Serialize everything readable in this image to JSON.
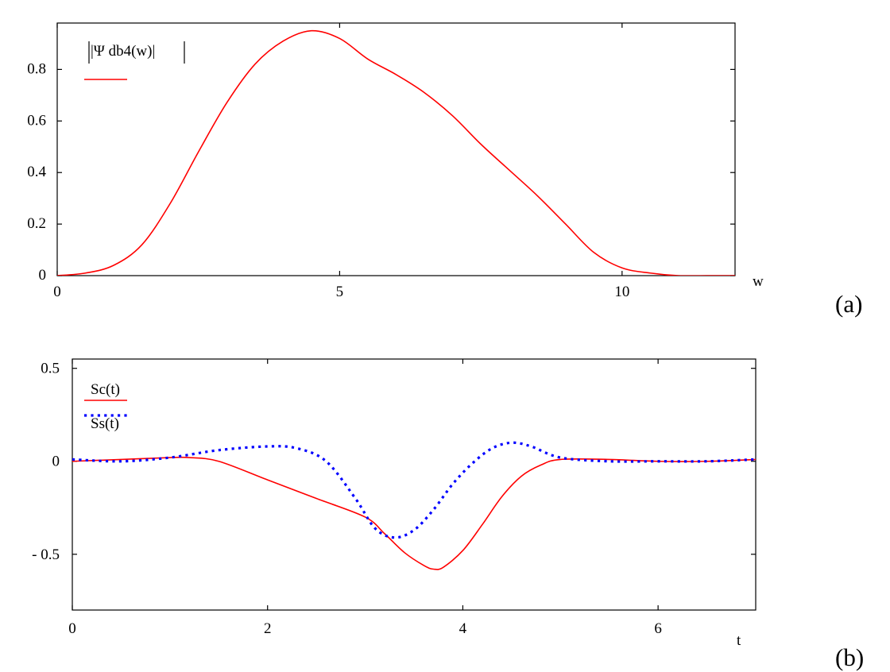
{
  "figure": {
    "panel_labels": [
      "(a)",
      "(b)"
    ]
  },
  "chart_data": [
    {
      "type": "line",
      "panel": "(a)",
      "title": "",
      "xlabel": "w",
      "ylabel": "",
      "xlim": [
        0,
        12
      ],
      "ylim": [
        0,
        0.98
      ],
      "xticks": [
        0,
        5,
        10
      ],
      "xtick_labels": [
        "0",
        "5",
        "10"
      ],
      "yticks": [
        0,
        0.2,
        0.4,
        0.6,
        0.8
      ],
      "ytick_labels": [
        "0",
        "0.2",
        "0.4",
        "0.6",
        "0.8"
      ],
      "grid": false,
      "legend_position": "top-left",
      "series": [
        {
          "name": "|Ψ db4(w)|",
          "color": "#ff0000",
          "style": "solid",
          "x": [
            0,
            0.5,
            1.0,
            1.5,
            2.0,
            2.5,
            3.0,
            3.5,
            4.0,
            4.5,
            5.0,
            5.5,
            6.0,
            6.5,
            7.0,
            7.5,
            8.0,
            8.5,
            9.0,
            9.5,
            10.0,
            10.5,
            11.0,
            11.5,
            12.0
          ],
          "y": [
            0.0,
            0.01,
            0.04,
            0.12,
            0.28,
            0.48,
            0.67,
            0.82,
            0.91,
            0.95,
            0.92,
            0.84,
            0.78,
            0.71,
            0.62,
            0.51,
            0.41,
            0.31,
            0.2,
            0.09,
            0.03,
            0.01,
            0.0,
            0.0,
            0.0
          ]
        }
      ]
    },
    {
      "type": "line",
      "panel": "(b)",
      "title": "",
      "xlabel": "t",
      "ylabel": "",
      "xlim": [
        0,
        7
      ],
      "ylim": [
        -0.8,
        0.55
      ],
      "xticks": [
        0,
        2,
        4,
        6
      ],
      "xtick_labels": [
        "0",
        "2",
        "4",
        "6"
      ],
      "yticks": [
        -0.5,
        0,
        0.5
      ],
      "ytick_labels": [
        "- 0.5",
        "0",
        "0.5"
      ],
      "grid": false,
      "legend_position": "top-left",
      "series": [
        {
          "name": "Sc(t)",
          "color": "#ff0000",
          "style": "solid",
          "x": [
            0,
            0.5,
            1.0,
            1.2,
            1.5,
            2.0,
            2.5,
            3.0,
            3.2,
            3.4,
            3.6,
            3.7,
            3.8,
            4.0,
            4.2,
            4.4,
            4.6,
            4.8,
            5.0,
            5.5,
            6.0,
            6.5,
            7.0
          ],
          "y": [
            0.0,
            0.01,
            0.02,
            0.02,
            0.0,
            -0.1,
            -0.2,
            -0.3,
            -0.39,
            -0.49,
            -0.56,
            -0.58,
            -0.57,
            -0.48,
            -0.34,
            -0.19,
            -0.08,
            -0.02,
            0.01,
            0.01,
            0.0,
            0.0,
            0.01
          ]
        },
        {
          "name": "Ss(t)",
          "color": "#0000ff",
          "style": "dotted",
          "x": [
            0,
            0.5,
            1.0,
            1.5,
            2.0,
            2.3,
            2.6,
            2.9,
            3.1,
            3.3,
            3.5,
            3.7,
            3.9,
            4.1,
            4.3,
            4.5,
            4.7,
            5.0,
            5.5,
            6.0,
            6.5,
            7.0
          ],
          "y": [
            0.01,
            0.0,
            0.02,
            0.06,
            0.08,
            0.07,
            0.0,
            -0.2,
            -0.36,
            -0.41,
            -0.37,
            -0.26,
            -0.12,
            -0.01,
            0.07,
            0.1,
            0.08,
            0.02,
            0.0,
            0.0,
            0.0,
            0.01
          ]
        }
      ]
    }
  ]
}
